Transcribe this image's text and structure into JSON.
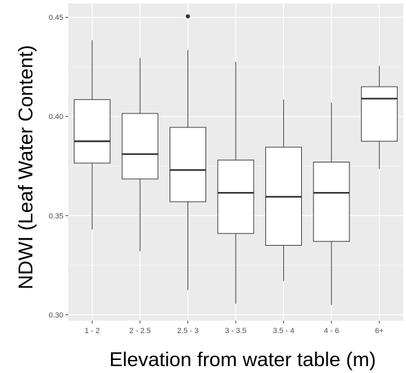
{
  "chart_data": {
    "type": "boxplot",
    "xlabel": "Elevation from water table (m)",
    "ylabel": "NDWI (Leaf Water Content)",
    "ylim": [
      0.297,
      0.457
    ],
    "yticks": [
      0.3,
      0.35,
      0.4,
      0.45
    ],
    "ytick_labels": [
      "0.30",
      "0.35",
      "0.40",
      "0.45"
    ],
    "grid": true,
    "legend": "none",
    "categories": [
      "1 - 2",
      "2 - 2.5",
      "2.5 - 3",
      "3 - 3.5",
      "3.5 - 4",
      "4 - 6",
      "6+"
    ],
    "boxes": [
      {
        "category": "1 - 2",
        "whisker_low": 0.343,
        "q1": 0.3765,
        "median": 0.3875,
        "q3": 0.4085,
        "whisker_high": 0.4385,
        "outliers": []
      },
      {
        "category": "2 - 2.5",
        "whisker_low": 0.332,
        "q1": 0.3685,
        "median": 0.381,
        "q3": 0.4015,
        "whisker_high": 0.4295,
        "outliers": []
      },
      {
        "category": "2.5 - 3",
        "whisker_low": 0.3125,
        "q1": 0.357,
        "median": 0.373,
        "q3": 0.3945,
        "whisker_high": 0.4335,
        "outliers": [
          0.4505
        ]
      },
      {
        "category": "3 - 3.5",
        "whisker_low": 0.3055,
        "q1": 0.341,
        "median": 0.3615,
        "q3": 0.378,
        "whisker_high": 0.4275,
        "outliers": []
      },
      {
        "category": "3.5 - 4",
        "whisker_low": 0.317,
        "q1": 0.335,
        "median": 0.3595,
        "q3": 0.3845,
        "whisker_high": 0.4085,
        "outliers": []
      },
      {
        "category": "4 - 6",
        "whisker_low": 0.305,
        "q1": 0.337,
        "median": 0.3615,
        "q3": 0.377,
        "whisker_high": 0.407,
        "outliers": []
      },
      {
        "category": "6+",
        "whisker_low": 0.3735,
        "q1": 0.3875,
        "median": 0.409,
        "q3": 0.415,
        "whisker_high": 0.4255,
        "outliers": []
      }
    ],
    "colors": {
      "panel_background": "#ebebeb",
      "grid_major": "#ffffff",
      "box_fill": "#ffffff",
      "box_stroke": "#333333",
      "outlier": "#333333",
      "tick_mark": "#333333"
    }
  }
}
